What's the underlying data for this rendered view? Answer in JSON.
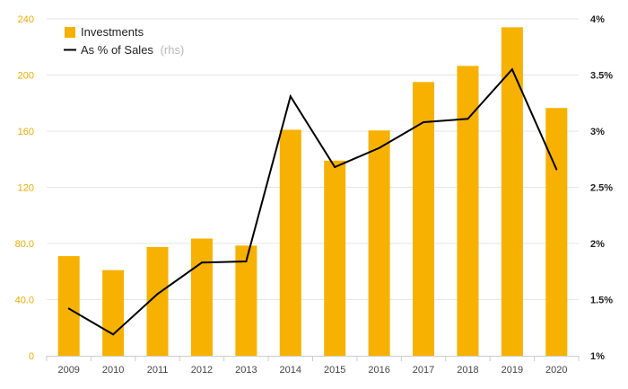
{
  "chart_data": {
    "type": "bar",
    "categories": [
      "2009",
      "2010",
      "2011",
      "2012",
      "2013",
      "2014",
      "2015",
      "2016",
      "2017",
      "2018",
      "2019",
      "2020"
    ],
    "series": [
      {
        "name": "Investments",
        "type": "bar",
        "axis": "left",
        "color": "#f7b100",
        "values": [
          71,
          61,
          77.5,
          83.5,
          78.5,
          161,
          139,
          160.5,
          195,
          206.5,
          234,
          176.5
        ]
      },
      {
        "name": "As % of Sales",
        "name_note": "(rhs)",
        "type": "line",
        "axis": "right",
        "color": "#000000",
        "values": [
          1.42,
          1.19,
          1.55,
          1.83,
          1.84,
          3.31,
          2.68,
          2.85,
          3.08,
          3.11,
          3.55,
          2.66
        ]
      }
    ],
    "y_left": {
      "ylim": [
        0,
        240
      ],
      "ticks": [
        0,
        40,
        80,
        120,
        160,
        200,
        240
      ],
      "tick_labels": [
        "0",
        "40.0",
        "80.0",
        "120",
        "160",
        "200",
        "240"
      ]
    },
    "y_right": {
      "ylim": [
        1,
        4
      ],
      "ticks": [
        1,
        1.5,
        2,
        2.5,
        3,
        3.5,
        4
      ],
      "tick_labels": [
        "1%",
        "1.5%",
        "2%",
        "2.5%",
        "3%",
        "3.5%",
        "4%"
      ]
    },
    "grid": true,
    "legend_position": "top-left"
  }
}
